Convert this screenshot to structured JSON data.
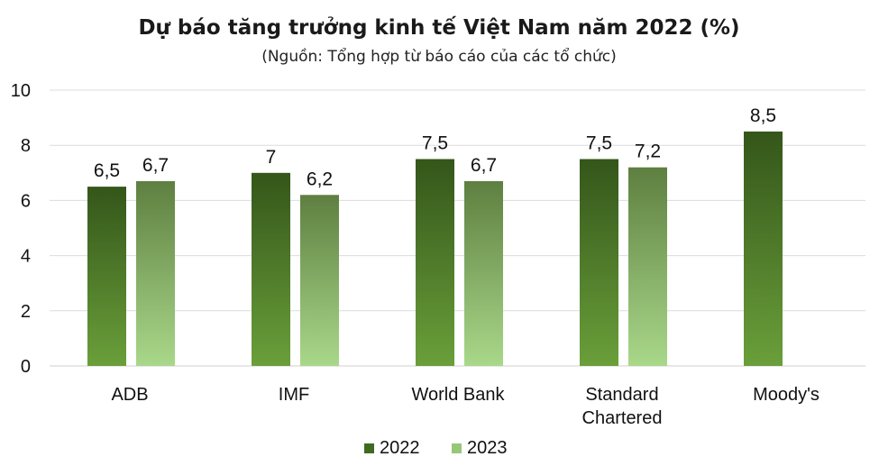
{
  "chart_data": {
    "type": "bar",
    "title": "Dự báo tăng trưởng kinh tế Việt Nam năm 2022 (%)",
    "subtitle": "(Nguồn: Tổng hợp từ báo cáo của các tổ chức)",
    "categories": [
      [
        "ADB"
      ],
      [
        "IMF"
      ],
      [
        "World Bank"
      ],
      [
        "Standard",
        "Chartered"
      ],
      [
        "Moody's"
      ]
    ],
    "series": [
      {
        "name": "2022",
        "values": [
          6.5,
          7,
          7.5,
          7.5,
          8.5
        ],
        "labels": [
          "6,5",
          "7",
          "7,5",
          "7,5",
          "8,5"
        ]
      },
      {
        "name": "2023",
        "values": [
          6.7,
          6.2,
          6.7,
          7.2,
          null
        ],
        "labels": [
          "6,7",
          "6,2",
          "6,7",
          "7,2",
          null
        ]
      }
    ],
    "yticks": [
      "0",
      "2",
      "4",
      "6",
      "8",
      "10"
    ],
    "ylim": [
      0,
      10
    ],
    "grid": true,
    "legend_position": "bottom",
    "colors": {
      "s2022_top": "#34561a",
      "s2022_bottom": "#6a9f3a",
      "s2023_top": "#5e7f40",
      "s2023_bottom": "#a9d88a",
      "legend2022": "#3f6a20",
      "legend2023": "#96c878"
    }
  }
}
